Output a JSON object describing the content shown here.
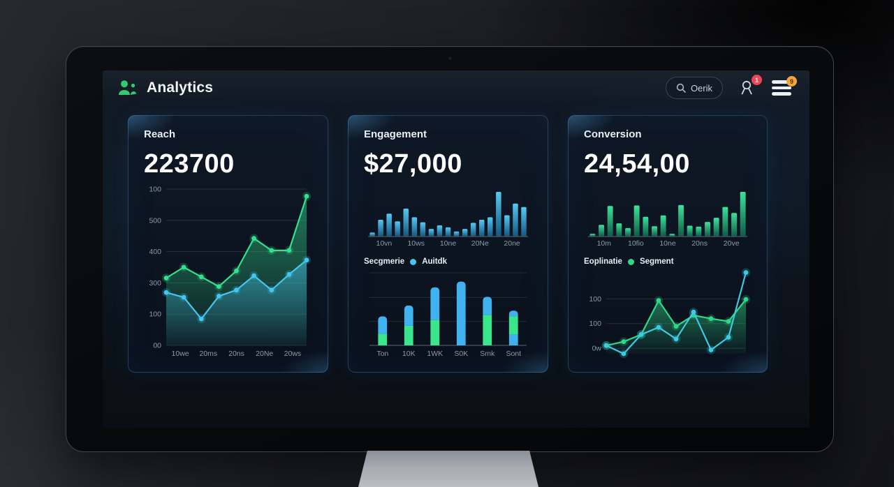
{
  "header": {
    "title": "Analytics",
    "search": {
      "text": "Oerik"
    },
    "badges": {
      "notifications": "1",
      "menu": "9"
    }
  },
  "cards": [
    {
      "id": "reach",
      "title": "Reach",
      "value": "223700"
    },
    {
      "id": "engagement",
      "title": "Engagement",
      "value": "$27,000",
      "legend": {
        "label": "Secgmerie",
        "series_name": "Auitdk",
        "dot_color": "#45c6ee"
      }
    },
    {
      "id": "conversion",
      "title": "Conversion",
      "value": "24,54,00",
      "legend": {
        "label": "Eoplinatie",
        "series_name": "Segment",
        "dot_color": "#2fd886"
      }
    }
  ],
  "colors": {
    "accent_green": "#2ecc71",
    "accent_cyan": "#45c6ee",
    "badge_red": "#ee4656",
    "badge_orange": "#f2a63c",
    "axis_text": "#8d9aa8",
    "card_border": "#2e6e96"
  },
  "chart_data": {
    "reach_trend": {
      "type": "line",
      "title": "Reach trend",
      "ylim": [
        0,
        130
      ],
      "gridlines": [
        {
          "label": "00",
          "v": 0
        },
        {
          "label": "100",
          "v": 26
        },
        {
          "label": "300",
          "v": 52
        },
        {
          "label": "400",
          "v": 78
        },
        {
          "label": "500",
          "v": 104
        },
        {
          "label": "100",
          "v": 130
        }
      ],
      "x_labels": [
        "10we",
        "20ms",
        "20ns",
        "20Ne",
        "20ws"
      ],
      "series": [
        {
          "name": "reach-green",
          "color": "#34e08e",
          "fill": true,
          "values": [
            56,
            65,
            57,
            49,
            62,
            89,
            79,
            79,
            124
          ]
        },
        {
          "name": "reach-cyan",
          "color": "#45c6ee",
          "fill": true,
          "values": [
            44,
            40,
            22,
            41,
            46,
            58,
            46,
            59,
            71
          ]
        }
      ]
    },
    "engagement_volume": {
      "type": "bar",
      "title": "Engagement volume",
      "color_top": "#55c9f2",
      "color_bottom": "#14557e",
      "x_labels": [
        "10vn",
        "10ws",
        "10ne",
        "20Ne",
        "20ne"
      ],
      "values": [
        8,
        33,
        45,
        30,
        55,
        38,
        28,
        15,
        22,
        18,
        10,
        15,
        27,
        33,
        38,
        88,
        42,
        65,
        58
      ]
    },
    "engagement_segments": {
      "type": "stacked",
      "title": "Engagement segments",
      "ylim": [
        0,
        100
      ],
      "grid_values": [
        33,
        66,
        100
      ],
      "colors": {
        "green": "#39e68c",
        "blue": "#3fb2ef"
      },
      "x_labels": [
        "Ton",
        "10K",
        "1WK",
        "S0K",
        "Smk",
        "Sont"
      ],
      "bars": [
        [
          {
            "c": "green",
            "v": 16
          },
          {
            "c": "blue",
            "v": 24
          }
        ],
        [
          {
            "c": "green",
            "v": 27
          },
          {
            "c": "blue",
            "v": 28
          }
        ],
        [
          {
            "c": "green",
            "v": 35
          },
          {
            "c": "blue",
            "v": 45
          }
        ],
        [
          {
            "c": "blue",
            "v": 88
          }
        ],
        [
          {
            "c": "green",
            "v": 42
          },
          {
            "c": "blue",
            "v": 25
          }
        ],
        [
          {
            "c": "blue",
            "v": 15
          },
          {
            "c": "green",
            "v": 25
          },
          {
            "c": "blue",
            "v": 8
          }
        ]
      ]
    },
    "conversion_volume": {
      "type": "bar",
      "title": "Conversion volume",
      "color_top": "#3de29a",
      "color_bottom": "#0e5a45",
      "x_labels": [
        "10m",
        "10fio",
        "10ne",
        "20ns",
        "20ve"
      ],
      "values": [
        6,
        25,
        65,
        28,
        18,
        66,
        42,
        22,
        45,
        6,
        67,
        23,
        21,
        31,
        40,
        63,
        50,
        95
      ]
    },
    "conversion_trend": {
      "type": "line",
      "title": "Conversion trend",
      "ylim": [
        0,
        150
      ],
      "gridlines": [
        {
          "label": "0w",
          "v": 10
        },
        {
          "label": "100",
          "v": 55
        },
        {
          "label": "100",
          "v": 100
        }
      ],
      "x_labels": [],
      "series": [
        {
          "name": "conversion-green",
          "color": "#2fd886",
          "fill": true,
          "values": [
            15,
            22,
            35,
            97,
            50,
            70,
            64,
            59,
            99
          ]
        },
        {
          "name": "conversion-cyan",
          "color": "#3ccbe0",
          "fill": false,
          "values": [
            15,
            0,
            35,
            48,
            27,
            76,
            7,
            30,
            148
          ]
        }
      ]
    }
  }
}
